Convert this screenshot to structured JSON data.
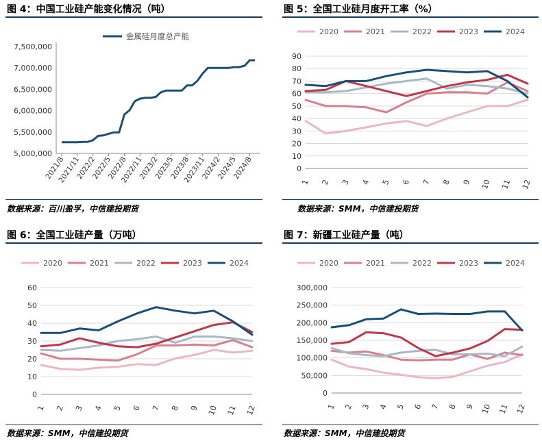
{
  "panels": [
    {
      "title": "图 4：中国工业硅产能变化情况（吨）",
      "source": "数据来源：百川盈孚，中信建投期货"
    },
    {
      "title": "图 5：全国工业硅月度开工率（%）",
      "source": "数据来源：SMM，中信建投期货"
    },
    {
      "title": "图 6：全国工业硅产量（万吨）",
      "source": "数据来源：SMM，中信建投期货"
    },
    {
      "title": "图 7：新疆工业硅产量（吨）",
      "source": "数据来源：SMM，中信建投期货"
    }
  ],
  "colors": {
    "2020": "#ecb7c2",
    "2021": "#d8808c",
    "2022": "#a9b8c6",
    "2023": "#c0374a",
    "2024": "#1a4f75",
    "capacity": "#1a4f75",
    "rule": "#173a5e"
  },
  "chart_data": [
    {
      "type": "line",
      "title": "图 4：中国工业硅产能变化情况（吨）",
      "xlabel": "",
      "ylabel": "",
      "ylim": [
        5000000,
        7500000
      ],
      "yticks": [
        "5,000,000",
        "5,500,000",
        "6,000,000",
        "6,500,000",
        "7,000,000",
        "7,500,000"
      ],
      "xticks": [
        "2021/8",
        "2021/11",
        "2022/2",
        "2022/5",
        "2022/8",
        "2022/11",
        "2023/2",
        "2023/5",
        "2023/8",
        "2023/11",
        "2024/2",
        "2024/5",
        "2024/8"
      ],
      "legend": "top",
      "grid": false,
      "series": [
        {
          "name": "金属硅月度总产能",
          "values": [
            5260000,
            5260000,
            5260000,
            5260000,
            5270000,
            5270000,
            5310000,
            5410000,
            5420000,
            5460000,
            5490000,
            5490000,
            5910000,
            6010000,
            6220000,
            6280000,
            6300000,
            6300000,
            6320000,
            6430000,
            6470000,
            6470000,
            6470000,
            6470000,
            6590000,
            6590000,
            6700000,
            6870000,
            7000000,
            7000000,
            7000000,
            7000000,
            7000000,
            7020000,
            7020000,
            7050000,
            7180000,
            7180000
          ]
        }
      ]
    },
    {
      "type": "line",
      "title": "图 5：全国工业硅月度开工率（%）",
      "xlabel": "",
      "ylabel": "",
      "ylim": [
        0,
        90
      ],
      "yticks": [
        "0",
        "10",
        "20",
        "30",
        "40",
        "50",
        "60",
        "70",
        "80",
        "90"
      ],
      "categories": [
        "1",
        "2",
        "3",
        "4",
        "5",
        "6",
        "7",
        "8",
        "9",
        "10",
        "11",
        "12"
      ],
      "legend": "top",
      "grid": true,
      "series": [
        {
          "name": "2020",
          "values": [
            38,
            28,
            30,
            33,
            36,
            38,
            34,
            40,
            45,
            50,
            50,
            55
          ]
        },
        {
          "name": "2021",
          "values": [
            55,
            50,
            50,
            49,
            45,
            53,
            60,
            61,
            61,
            60,
            69,
            62
          ]
        },
        {
          "name": "2022",
          "values": [
            61,
            61,
            62,
            65,
            68,
            70,
            72,
            64,
            67,
            66,
            64,
            60
          ]
        },
        {
          "name": "2023",
          "values": [
            62,
            63,
            70,
            66,
            62,
            58,
            62,
            66,
            69,
            71,
            75,
            68
          ]
        },
        {
          "name": "2024",
          "values": [
            67,
            66,
            70,
            70,
            74,
            77,
            79,
            78,
            77,
            78,
            70,
            57
          ]
        }
      ]
    },
    {
      "type": "line",
      "title": "图 6：全国工业硅产量（万吨）",
      "xlabel": "",
      "ylabel": "",
      "ylim": [
        0,
        60
      ],
      "yticks": [
        "0",
        "10",
        "20",
        "30",
        "40",
        "50",
        "60"
      ],
      "categories": [
        "1",
        "2",
        "3",
        "4",
        "5",
        "6",
        "7",
        "8",
        "9",
        "10",
        "11",
        "12"
      ],
      "legend": "top",
      "grid": true,
      "series": [
        {
          "name": "2020",
          "values": [
            16.5,
            14.3,
            13.8,
            15.0,
            15.5,
            17.0,
            16.5,
            20.2,
            22.2,
            25.0,
            23.5,
            24.5
          ]
        },
        {
          "name": "2021",
          "values": [
            23.0,
            20.0,
            20.0,
            19.5,
            19.0,
            22.5,
            27.5,
            27.5,
            28.0,
            27.5,
            30.5,
            26.5
          ]
        },
        {
          "name": "2022",
          "values": [
            25.0,
            24.5,
            26.0,
            27.5,
            30.0,
            31.0,
            32.5,
            29.0,
            32.5,
            32.5,
            31.5,
            30.0
          ]
        },
        {
          "name": "2023",
          "values": [
            27.0,
            28.0,
            31.5,
            29.0,
            27.0,
            26.5,
            28.5,
            32.0,
            35.5,
            39.0,
            40.5,
            35.0
          ]
        },
        {
          "name": "2024",
          "values": [
            34.5,
            34.5,
            37.0,
            36.0,
            41.0,
            45.5,
            49.0,
            47.0,
            45.5,
            47.0,
            41.0,
            33.5
          ]
        }
      ]
    },
    {
      "type": "line",
      "title": "图 7：新疆工业硅产量（吨）",
      "xlabel": "",
      "ylabel": "",
      "ylim": [
        0,
        300000
      ],
      "yticks": [
        "0",
        "50,000",
        "100,000",
        "150,000",
        "200,000",
        "250,000",
        "300,000"
      ],
      "categories": [
        "1",
        "2",
        "3",
        "4",
        "5",
        "6",
        "7",
        "8",
        "9",
        "10",
        "11",
        "12"
      ],
      "legend": "top",
      "grid": true,
      "series": [
        {
          "name": "2020",
          "values": [
            95000,
            75000,
            68000,
            58000,
            52000,
            45000,
            42000,
            46000,
            62000,
            78000,
            88000,
            110000
          ]
        },
        {
          "name": "2021",
          "values": [
            120000,
            115000,
            118000,
            108000,
            95000,
            93000,
            95000,
            95000,
            110000,
            97000,
            115000,
            108000
          ]
        },
        {
          "name": "2022",
          "values": [
            128000,
            113000,
            108000,
            105000,
            115000,
            120000,
            123000,
            110000,
            110000,
            112000,
            105000,
            132000
          ]
        },
        {
          "name": "2023",
          "values": [
            140000,
            145000,
            173000,
            170000,
            158000,
            128000,
            105000,
            115000,
            127000,
            148000,
            182000,
            180000
          ]
        },
        {
          "name": "2024",
          "values": [
            187000,
            193000,
            210000,
            212000,
            238000,
            225000,
            226000,
            225000,
            225000,
            232000,
            232000,
            178000
          ]
        }
      ]
    }
  ]
}
